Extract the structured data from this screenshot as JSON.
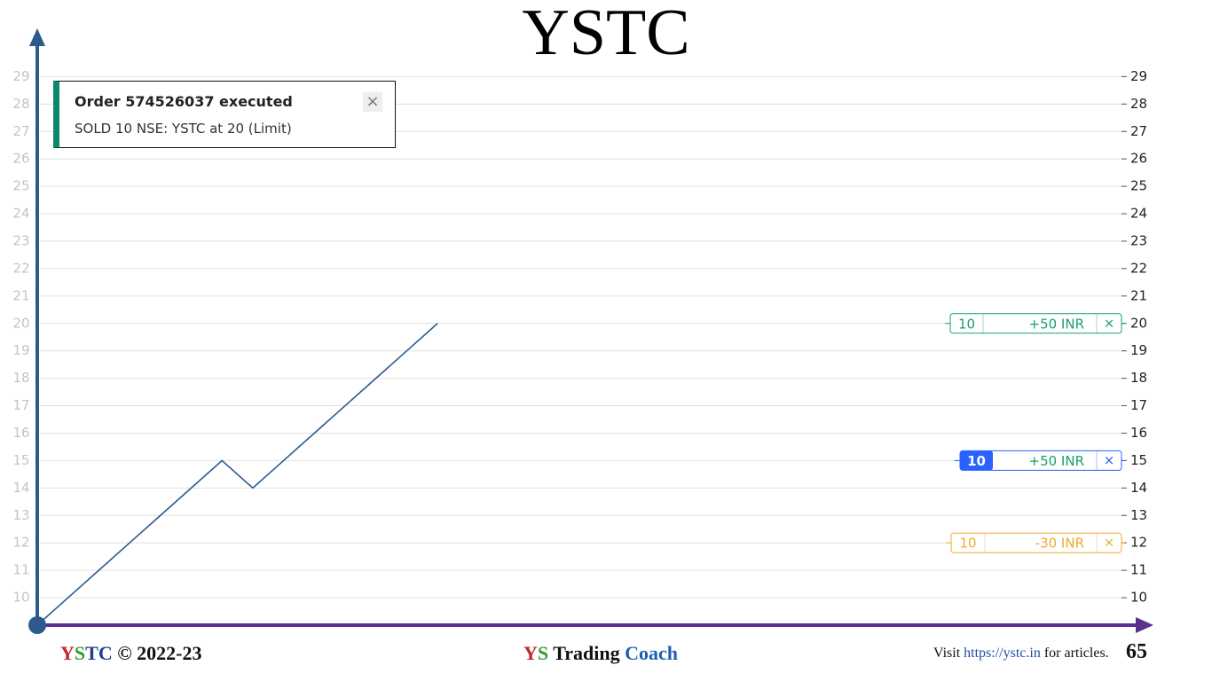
{
  "chart_data": {
    "type": "line",
    "title": "YSTC",
    "categories": [
      null,
      null,
      null,
      null,
      null,
      null,
      null,
      null,
      null,
      null,
      null,
      null,
      null,
      null
    ],
    "series": [
      {
        "color": "#2b5a8c",
        "values": [
          9,
          10,
          11,
          12,
          13,
          14,
          15,
          14,
          15,
          16,
          17,
          18,
          19,
          20
        ]
      }
    ],
    "ylim": [
      9,
      30.5
    ],
    "yticks": [
      10,
      11,
      12,
      13,
      14,
      15,
      16,
      17,
      18,
      19,
      20,
      21,
      22,
      23,
      24,
      25,
      26,
      27,
      28,
      29
    ],
    "grid": true,
    "positions": [
      {
        "quantity": "10",
        "pnl": "+50 INR",
        "close": "×",
        "price": 20,
        "color": "#1aa06a",
        "style": "outline"
      },
      {
        "quantity": "10",
        "pnl": "+50 INR",
        "close": "×",
        "price": 15,
        "color": "#2962ff",
        "style": "filled"
      },
      {
        "quantity": "10",
        "pnl": "-30 INR",
        "close": "×",
        "price": 12,
        "color": "#f0a830",
        "style": "outline"
      }
    ]
  },
  "toast": {
    "heading": "Order 574526037 executed",
    "body": "SOLD 10 NSE: YSTC at 20 (Limit)",
    "close": "×"
  },
  "footer": {
    "copyright": [
      "Y",
      "S",
      "T",
      "C",
      " © 2022-23"
    ],
    "brand": [
      "Y",
      "S",
      " Trading ",
      "Coach"
    ],
    "visit": [
      "Visit ",
      "https://ystc.in",
      " for articles."
    ],
    "page": "65"
  }
}
